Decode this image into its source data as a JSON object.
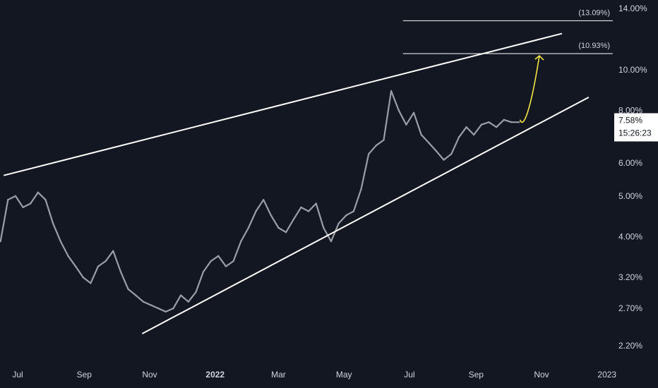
{
  "chart_data": {
    "type": "line",
    "title": "",
    "xlabel": "",
    "ylabel": "",
    "y_scale": "log",
    "ylim": [
      2.05,
      14.5
    ],
    "grid": false,
    "colors": {
      "background": "#131722",
      "price": "#9b9ea6",
      "trendline": "#ffffff",
      "projection": "#f5e642",
      "text": "#d1d4dc"
    },
    "x_ticks": [
      {
        "date": "2021-07-01",
        "label": "Jul"
      },
      {
        "date": "2021-09-01",
        "label": "Sep"
      },
      {
        "date": "2021-11-01",
        "label": "Nov"
      },
      {
        "date": "2022-01-01",
        "label": "2022",
        "bold": true
      },
      {
        "date": "2022-03-01",
        "label": "Mar"
      },
      {
        "date": "2022-05-01",
        "label": "May"
      },
      {
        "date": "2022-07-01",
        "label": "Jul"
      },
      {
        "date": "2022-09-01",
        "label": "Sep"
      },
      {
        "date": "2022-11-01",
        "label": "Nov"
      },
      {
        "date": "2023-01-01",
        "label": "2023"
      }
    ],
    "y_ticks": [
      {
        "value": 14.0,
        "label": "14.00%"
      },
      {
        "value": 10.0,
        "label": "10.00%"
      },
      {
        "value": 8.0,
        "label": "8.00%"
      },
      {
        "value": 6.0,
        "label": "6.00%"
      },
      {
        "value": 5.0,
        "label": "5.00%"
      },
      {
        "value": 4.0,
        "label": "4.00%"
      },
      {
        "value": 3.2,
        "label": "3.20%"
      },
      {
        "value": 2.7,
        "label": "2.70%"
      },
      {
        "value": 2.2,
        "label": "2.20%"
      }
    ],
    "price_series": {
      "x": [
        "2021-06-15",
        "2021-06-22",
        "2021-06-29",
        "2021-07-06",
        "2021-07-13",
        "2021-07-20",
        "2021-07-27",
        "2021-08-03",
        "2021-08-10",
        "2021-08-17",
        "2021-08-24",
        "2021-08-31",
        "2021-09-07",
        "2021-09-14",
        "2021-09-21",
        "2021-09-28",
        "2021-10-05",
        "2021-10-12",
        "2021-10-19",
        "2021-10-26",
        "2021-11-02",
        "2021-11-09",
        "2021-11-16",
        "2021-11-23",
        "2021-11-30",
        "2021-12-07",
        "2021-12-14",
        "2021-12-21",
        "2021-12-28",
        "2022-01-04",
        "2022-01-11",
        "2022-01-18",
        "2022-01-25",
        "2022-02-01",
        "2022-02-08",
        "2022-02-15",
        "2022-02-22",
        "2022-03-01",
        "2022-03-08",
        "2022-03-15",
        "2022-03-22",
        "2022-03-29",
        "2022-04-05",
        "2022-04-12",
        "2022-04-19",
        "2022-04-26",
        "2022-05-03",
        "2022-05-10",
        "2022-05-17",
        "2022-05-24",
        "2022-05-31",
        "2022-06-07",
        "2022-06-14",
        "2022-06-21",
        "2022-06-28",
        "2022-07-05",
        "2022-07-12",
        "2022-07-19",
        "2022-07-26",
        "2022-08-02",
        "2022-08-09",
        "2022-08-16",
        "2022-08-23",
        "2022-08-30",
        "2022-09-06",
        "2022-09-13",
        "2022-09-20",
        "2022-09-27",
        "2022-10-04",
        "2022-10-11"
      ],
      "y": [
        3.9,
        4.9,
        5.0,
        4.7,
        4.8,
        5.1,
        4.9,
        4.3,
        3.9,
        3.6,
        3.4,
        3.2,
        3.1,
        3.4,
        3.5,
        3.7,
        3.3,
        3.0,
        2.9,
        2.8,
        2.75,
        2.7,
        2.65,
        2.7,
        2.9,
        2.8,
        2.95,
        3.3,
        3.5,
        3.6,
        3.4,
        3.5,
        3.9,
        4.2,
        4.6,
        4.9,
        4.5,
        4.2,
        4.1,
        4.4,
        4.7,
        4.6,
        4.8,
        4.2,
        3.9,
        4.3,
        4.5,
        4.6,
        5.2,
        6.3,
        6.6,
        6.8,
        8.9,
        8.0,
        7.4,
        7.9,
        7.0,
        6.7,
        6.4,
        6.1,
        6.3,
        6.9,
        7.3,
        7.0,
        7.4,
        7.5,
        7.3,
        7.6,
        7.5,
        7.5
      ]
    },
    "trendlines": [
      {
        "name": "upper",
        "from": {
          "date": "2021-06-18",
          "value": 5.6
        },
        "to": {
          "date": "2022-11-20",
          "value": 12.2
        }
      },
      {
        "name": "lower",
        "from": {
          "date": "2021-10-25",
          "value": 2.35
        },
        "to": {
          "date": "2022-12-15",
          "value": 8.6
        }
      }
    ],
    "levels": [
      {
        "value": 13.09,
        "label": "(13.09%)",
        "from_date": "2022-06-25"
      },
      {
        "value": 10.93,
        "label": "(10.93%)",
        "from_date": "2022-06-25"
      }
    ],
    "projection": {
      "points": [
        {
          "date": "2022-10-12",
          "value": 7.6
        },
        {
          "date": "2022-10-15",
          "value": 7.2
        },
        {
          "date": "2022-10-22",
          "value": 8.0
        },
        {
          "date": "2022-10-30",
          "value": 10.8
        }
      ]
    },
    "last_price": {
      "value": 7.58,
      "label": "7.58%",
      "countdown": "15:26:23"
    }
  }
}
